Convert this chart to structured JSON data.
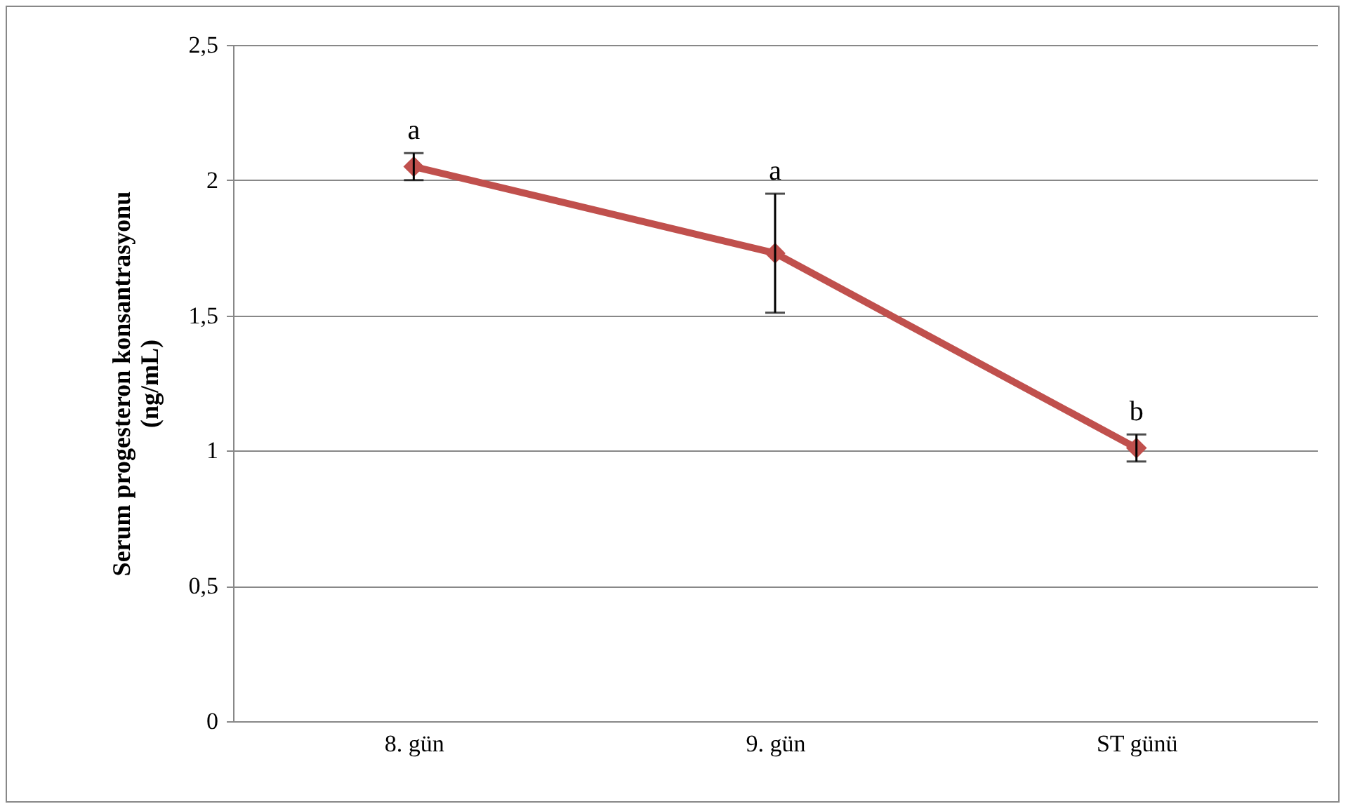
{
  "chart_data": {
    "type": "line",
    "ylabel": "Serum progesteron konsantrasyonu\n(ng/mL)",
    "categories": [
      "8. gün",
      "9. gün",
      "ST günü"
    ],
    "series": [
      {
        "color": "#c0504d",
        "values": [
          2.05,
          1.73,
          1.01
        ],
        "errors": [
          0.05,
          0.22,
          0.05
        ]
      }
    ],
    "ylim": [
      0,
      2.5
    ],
    "yticks": [
      0,
      {
        "value": 0.5,
        "label": "0,5"
      },
      1,
      {
        "value": 1.5,
        "label": "1,5"
      },
      2,
      {
        "value": 2.5,
        "label": "2,5"
      }
    ],
    "grid": "y",
    "marker": "diamond",
    "line_style": "solid",
    "annotations": [
      {
        "text": "a",
        "x": "8. gün",
        "y": 2.05
      },
      {
        "text": "a",
        "x": "9. gün",
        "y": 1.73
      },
      {
        "text": "b",
        "x": "ST günü",
        "y": 1.01
      }
    ]
  }
}
